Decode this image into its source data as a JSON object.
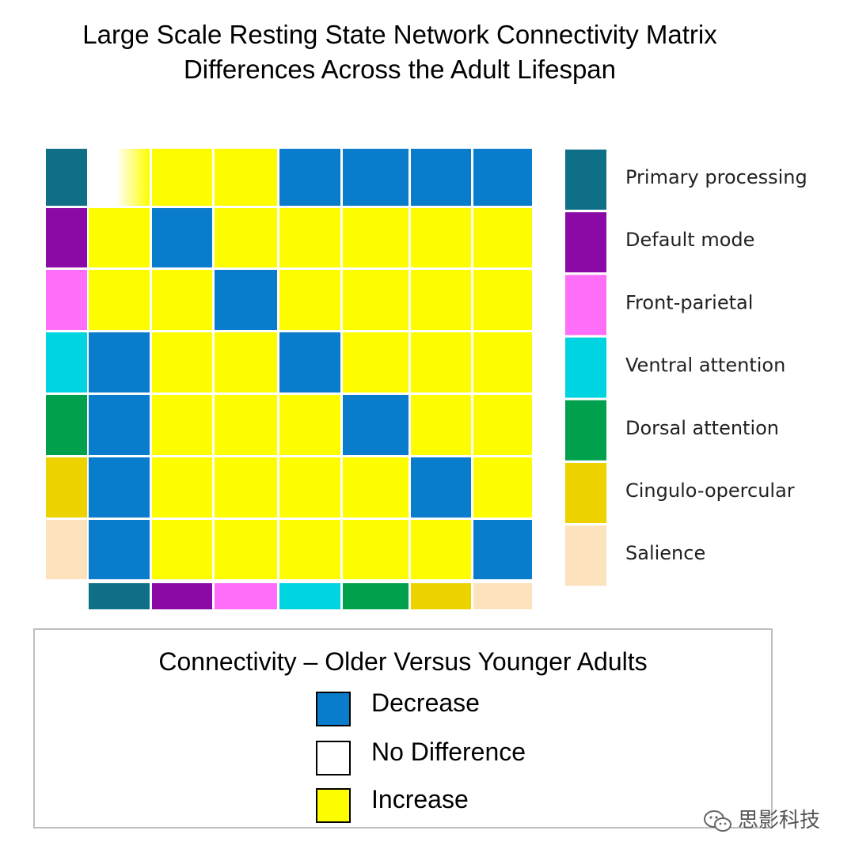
{
  "chart_data": {
    "type": "heatmap",
    "title": [
      "Large Scale Resting State Network Connectivity Matrix",
      "Differences Across the Adult Lifespan"
    ],
    "networks": [
      {
        "name": "Primary processing",
        "color": "#0e6f86"
      },
      {
        "name": "Default mode",
        "color": "#8b0aa5"
      },
      {
        "name": "Front-parietal",
        "color": "#ff6ef9"
      },
      {
        "name": "Ventral attention",
        "color": "#00d4e0"
      },
      {
        "name": "Dorsal attention",
        "color": "#00a04c"
      },
      {
        "name": "Cingulo-opercular",
        "color": "#ecd300"
      },
      {
        "name": "Salience",
        "color": "#fde2be"
      }
    ],
    "cells": [
      [
        "none",
        "increase",
        "increase",
        "decrease",
        "decrease",
        "decrease",
        "decrease"
      ],
      [
        "increase",
        "decrease",
        "increase",
        "increase",
        "increase",
        "increase",
        "increase"
      ],
      [
        "increase",
        "increase",
        "decrease",
        "increase",
        "increase",
        "increase",
        "increase"
      ],
      [
        "decrease",
        "increase",
        "increase",
        "decrease",
        "increase",
        "increase",
        "increase"
      ],
      [
        "decrease",
        "increase",
        "increase",
        "increase",
        "decrease",
        "increase",
        "increase"
      ],
      [
        "decrease",
        "increase",
        "increase",
        "increase",
        "increase",
        "decrease",
        "increase"
      ],
      [
        "decrease",
        "increase",
        "increase",
        "increase",
        "increase",
        "increase",
        "decrease"
      ]
    ],
    "value_colors": {
      "decrease": "#0a7ccc",
      "none": "#ffffff",
      "increase": "#fdfd00"
    },
    "legend": {
      "title": "Connectivity – Older Versus Younger Adults",
      "entries": [
        {
          "key": "decrease",
          "label": "Decrease",
          "color": "#0a7ccc"
        },
        {
          "key": "none",
          "label": "No Difference",
          "color": "#ffffff"
        },
        {
          "key": "increase",
          "label": "Increase",
          "color": "#fdfd00"
        }
      ]
    }
  },
  "watermark": {
    "text": "思影科技"
  }
}
